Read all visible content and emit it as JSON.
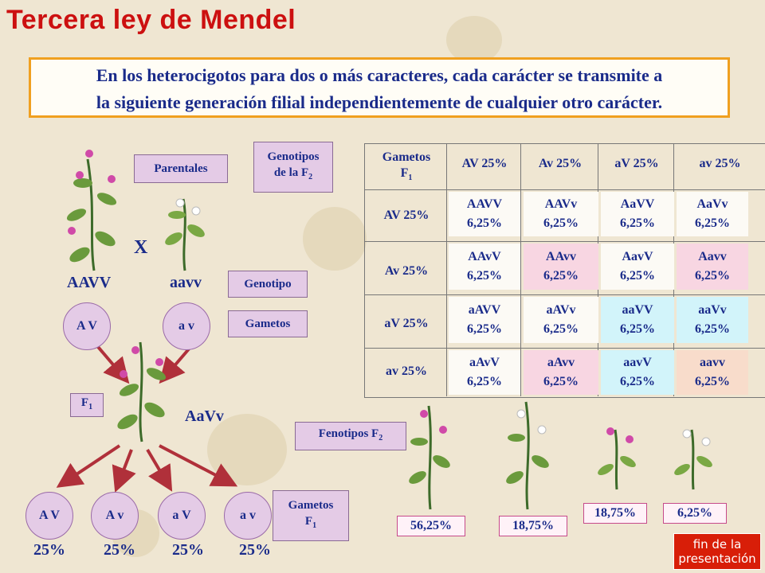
{
  "title": "Tercera ley de Mendel",
  "statement": {
    "line1": "En los heterocigotos para dos o más caracteres, cada carácter se transmite a",
    "line2": "la siguiente generación filial independientemente de cualquier otro carácter."
  },
  "labels": {
    "parentales": "Parentales",
    "genotipo": "Genotipo",
    "gametos": "Gametos",
    "f1": "F",
    "f1_sub": "1",
    "genotipos_f2_line1": "Genotipos",
    "genotipos_f2_line2": "de la F",
    "genotipos_f2_sub": "2",
    "fenotipos_f2": "Fenotipos F",
    "fenotipos_f2_sub": "2",
    "gametos_f1_line1": "Gametos",
    "gametos_f1_line2": "F",
    "gametos_f1_sub": "1",
    "cross": "X"
  },
  "parents": {
    "left_genotype": "AAVV",
    "right_genotype": "aavv",
    "left_gamete": "A V",
    "right_gamete": "a v"
  },
  "f1_genotype": "AaVv",
  "f1_gametes": [
    {
      "label": "A V",
      "pct": "25%"
    },
    {
      "label": "A v",
      "pct": "25%"
    },
    {
      "label": "a V",
      "pct": "25%"
    },
    {
      "label": "a v",
      "pct": "25%"
    }
  ],
  "punnett": {
    "corner_line1": "Gametos",
    "corner_line2": "F",
    "corner_sub": "1",
    "col_headers": [
      "AV 25%",
      "Av 25%",
      "aV 25%",
      "av 25%"
    ],
    "row_headers": [
      "AV 25%",
      "Av 25%",
      "aV 25%",
      "av 25%"
    ],
    "cells": [
      [
        {
          "g": "AAVV",
          "p": "6,25%",
          "c": "#fcfaf5"
        },
        {
          "g": "AAVv",
          "p": "6,25%",
          "c": "#fcfaf5"
        },
        {
          "g": "AaVV",
          "p": "6,25%",
          "c": "#fcfaf5"
        },
        {
          "g": "AaVv",
          "p": "6,25%",
          "c": "#fcfaf5"
        }
      ],
      [
        {
          "g": "AAvV",
          "p": "6,25%",
          "c": "#fcfaf5"
        },
        {
          "g": "AAvv",
          "p": "6,25%",
          "c": "#f8d6e2"
        },
        {
          "g": "AavV",
          "p": "6,25%",
          "c": "#fcfaf5"
        },
        {
          "g": "Aavv",
          "p": "6,25%",
          "c": "#f8d6e2"
        }
      ],
      [
        {
          "g": "aAVV",
          "p": "6,25%",
          "c": "#fcfaf5"
        },
        {
          "g": "aAVv",
          "p": "6,25%",
          "c": "#fcfaf5"
        },
        {
          "g": "aaVV",
          "p": "6,25%",
          "c": "#d2f4fa"
        },
        {
          "g": "aaVv",
          "p": "6,25%",
          "c": "#d2f4fa"
        }
      ],
      [
        {
          "g": "aAvV",
          "p": "6,25%",
          "c": "#fcfaf5"
        },
        {
          "g": "aAvv",
          "p": "6,25%",
          "c": "#f8d6e2"
        },
        {
          "g": "aavV",
          "p": "6,25%",
          "c": "#d2f4fa"
        },
        {
          "g": "aavv",
          "p": "6,25%",
          "c": "#f8dccb"
        }
      ]
    ]
  },
  "phenotypes": [
    "56,25%",
    "18,75%",
    "18,75%",
    "6,25%"
  ],
  "end_button": {
    "line1": "fin de la",
    "line2": "presentación"
  },
  "colors": {
    "title": "#cc1010",
    "text": "#1a2b8a",
    "label_bg": "#e4cbe6",
    "statement_border": "#f0a020",
    "arrow": "#b0303a",
    "end_button": "#d81e08"
  }
}
